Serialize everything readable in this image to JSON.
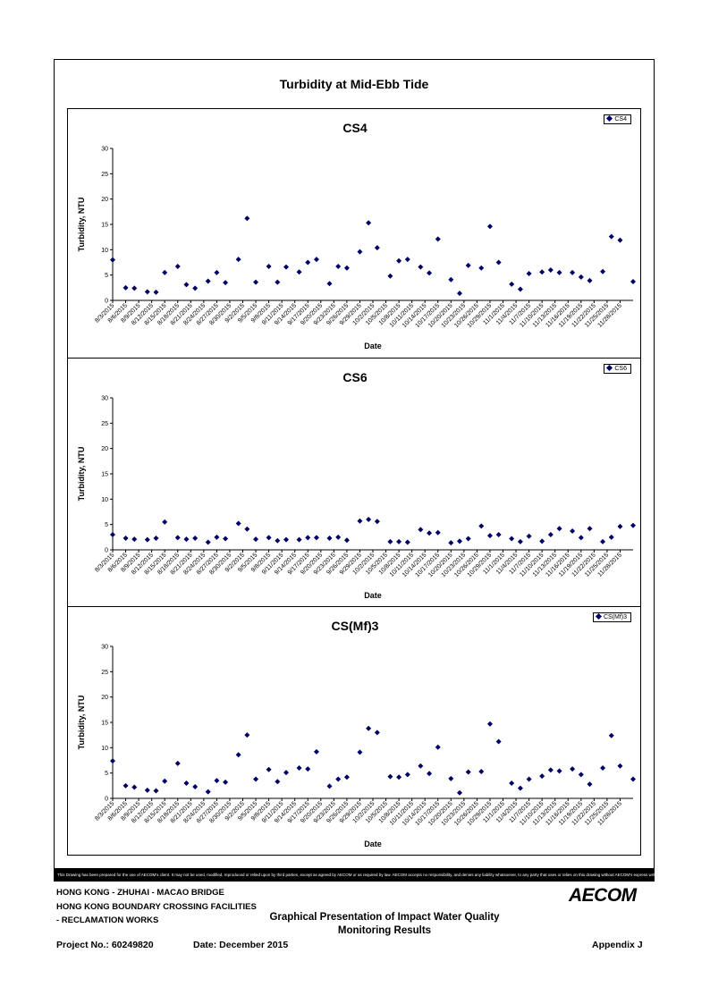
{
  "page": {
    "title": "Turbidity at Mid-Ebb Tide",
    "disclaimer": "This Drawing has been prepared for the use of AECOM's client. It may not be used, modified, reproduced or relied upon by third parties, except as agreed by AECOM or as required by law. AECOM accepts no responsibility, and denies any liability whatsoever, to any party that uses or relies on this drawing without AECOM's express written consent.",
    "footer": {
      "line1": "HONG KONG - ZHUHAI - MACAO BRIDGE",
      "line2": "HONG KONG BOUNDARY CROSSING FACILITIES",
      "line3": "- RECLAMATION WORKS",
      "heading1": "Graphical Presentation of Impact Water Quality",
      "heading2": "Monitoring Results",
      "project": "Project No.: 60249820",
      "date": "Date: December 2015",
      "appendix": "Appendix J",
      "logo": "AECOM"
    }
  },
  "marker_color": "#000066",
  "chart_data": [
    {
      "type": "scatter",
      "title": "CS4",
      "xlabel": "Date",
      "ylabel": "Turbidity, NTU",
      "ylim": [
        0,
        30
      ],
      "yticks": [
        0,
        5,
        10,
        15,
        20,
        25,
        30
      ],
      "legend": "top-right",
      "grid": false,
      "xticks": [
        "8/3/2015",
        "8/6/2015",
        "8/9/2015",
        "8/12/2015",
        "8/15/2015",
        "8/18/2015",
        "8/21/2015",
        "8/24/2015",
        "8/27/2015",
        "8/30/2015",
        "9/2/2015",
        "9/5/2015",
        "9/8/2015",
        "9/11/2015",
        "9/14/2015",
        "9/17/2015",
        "9/20/2015",
        "9/23/2015",
        "9/26/2015",
        "9/29/2015",
        "10/2/2015",
        "10/5/2015",
        "10/8/2015",
        "10/11/2015",
        "10/14/2015",
        "10/17/2015",
        "10/20/2015",
        "10/23/2015",
        "10/26/2015",
        "10/29/2015",
        "11/1/2015",
        "11/4/2015",
        "11/7/2015",
        "11/10/2015",
        "11/13/2015",
        "11/16/2015",
        "11/19/2015",
        "11/22/2015",
        "11/25/2015",
        "11/28/2015"
      ],
      "series": [
        {
          "name": "CS4",
          "x": [
            "8/3/2015",
            "8/6/2015",
            "8/8/2015",
            "8/11/2015",
            "8/13/2015",
            "8/15/2015",
            "8/18/2015",
            "8/20/2015",
            "8/22/2015",
            "8/25/2015",
            "8/27/2015",
            "8/29/2015",
            "9/1/2015",
            "9/3/2015",
            "9/5/2015",
            "9/8/2015",
            "9/10/2015",
            "9/12/2015",
            "9/15/2015",
            "9/17/2015",
            "9/19/2015",
            "9/22/2015",
            "9/24/2015",
            "9/26/2015",
            "9/29/2015",
            "10/1/2015",
            "10/3/2015",
            "10/6/2015",
            "10/8/2015",
            "10/10/2015",
            "10/13/2015",
            "10/15/2015",
            "10/17/2015",
            "10/20/2015",
            "10/22/2015",
            "10/24/2015",
            "10/27/2015",
            "10/29/2015",
            "10/31/2015",
            "11/3/2015",
            "11/5/2015",
            "11/7/2015",
            "11/10/2015",
            "11/12/2015",
            "11/14/2015",
            "11/17/2015",
            "11/19/2015",
            "11/21/2015",
            "11/24/2015",
            "11/26/2015",
            "11/28/2015",
            "12/1/2015"
          ],
          "values": [
            8.0,
            2.5,
            2.4,
            1.7,
            1.6,
            5.5,
            6.7,
            3.1,
            2.4,
            3.8,
            5.5,
            3.5,
            8.1,
            16.2,
            3.6,
            6.7,
            3.6,
            6.6,
            5.6,
            7.5,
            8.1,
            3.3,
            6.7,
            6.4,
            9.6,
            15.3,
            10.4,
            4.8,
            7.8,
            8.1,
            6.6,
            5.4,
            12.1,
            4.1,
            1.4,
            6.9,
            6.4,
            14.6,
            7.5,
            3.2,
            2.2,
            5.3,
            5.6,
            6.0,
            5.5,
            5.5,
            4.6,
            3.9,
            5.7,
            12.6,
            11.9,
            3.7
          ]
        }
      ]
    },
    {
      "type": "scatter",
      "title": "CS6",
      "xlabel": "Date",
      "ylabel": "Turbidity, NTU",
      "ylim": [
        0,
        30
      ],
      "yticks": [
        0,
        5,
        10,
        15,
        20,
        25,
        30
      ],
      "legend": "top-right",
      "grid": false,
      "xticks": [
        "8/3/2015",
        "8/6/2015",
        "8/9/2015",
        "8/12/2015",
        "8/15/2015",
        "8/18/2015",
        "8/21/2015",
        "8/24/2015",
        "8/27/2015",
        "8/30/2015",
        "9/2/2015",
        "9/5/2015",
        "9/8/2015",
        "9/11/2015",
        "9/14/2015",
        "9/17/2015",
        "9/20/2015",
        "9/23/2015",
        "9/26/2015",
        "9/29/2015",
        "10/2/2015",
        "10/5/2015",
        "10/8/2015",
        "10/11/2015",
        "10/14/2015",
        "10/17/2015",
        "10/20/2015",
        "10/23/2015",
        "10/26/2015",
        "10/29/2015",
        "11/1/2015",
        "11/4/2015",
        "11/7/2015",
        "11/10/2015",
        "11/13/2015",
        "11/16/2015",
        "11/19/2015",
        "11/22/2015",
        "11/25/2015",
        "11/28/2015"
      ],
      "series": [
        {
          "name": "CS6",
          "x": [
            "8/3/2015",
            "8/6/2015",
            "8/8/2015",
            "8/11/2015",
            "8/13/2015",
            "8/15/2015",
            "8/18/2015",
            "8/20/2015",
            "8/22/2015",
            "8/25/2015",
            "8/27/2015",
            "8/29/2015",
            "9/1/2015",
            "9/3/2015",
            "9/5/2015",
            "9/8/2015",
            "9/10/2015",
            "9/12/2015",
            "9/15/2015",
            "9/17/2015",
            "9/19/2015",
            "9/22/2015",
            "9/24/2015",
            "9/26/2015",
            "9/29/2015",
            "10/1/2015",
            "10/3/2015",
            "10/6/2015",
            "10/8/2015",
            "10/10/2015",
            "10/13/2015",
            "10/15/2015",
            "10/17/2015",
            "10/20/2015",
            "10/22/2015",
            "10/24/2015",
            "10/27/2015",
            "10/29/2015",
            "10/31/2015",
            "11/3/2015",
            "11/5/2015",
            "11/7/2015",
            "11/10/2015",
            "11/12/2015",
            "11/14/2015",
            "11/17/2015",
            "11/19/2015",
            "11/21/2015",
            "11/24/2015",
            "11/26/2015",
            "11/28/2015",
            "12/1/2015"
          ],
          "values": [
            3.0,
            2.3,
            2.1,
            2.0,
            2.3,
            5.5,
            2.4,
            2.1,
            2.3,
            1.5,
            2.5,
            2.2,
            5.2,
            4.1,
            2.1,
            2.4,
            1.8,
            2.0,
            2.0,
            2.4,
            2.4,
            2.3,
            2.5,
            1.9,
            5.7,
            6.0,
            5.6,
            1.6,
            1.6,
            1.5,
            4.0,
            3.3,
            3.4,
            1.4,
            1.7,
            2.2,
            4.7,
            2.8,
            3.0,
            2.2,
            1.6,
            2.7,
            1.7,
            3.0,
            4.2,
            3.7,
            2.4,
            4.2,
            1.6,
            2.5,
            4.6,
            4.8
          ]
        }
      ]
    },
    {
      "type": "scatter",
      "title": "CS(Mf)3",
      "xlabel": "Date",
      "ylabel": "Turbidity, NTU",
      "ylim": [
        0,
        30
      ],
      "yticks": [
        0,
        5,
        10,
        15,
        20,
        25,
        30
      ],
      "legend": "top-right",
      "grid": false,
      "xticks": [
        "8/3/2015",
        "8/6/2015",
        "8/9/2015",
        "8/12/2015",
        "8/15/2015",
        "8/18/2015",
        "8/21/2015",
        "8/24/2015",
        "8/27/2015",
        "8/30/2015",
        "9/2/2015",
        "9/5/2015",
        "9/8/2015",
        "9/11/2015",
        "9/14/2015",
        "9/17/2015",
        "9/20/2015",
        "9/23/2015",
        "9/26/2015",
        "9/29/2015",
        "10/2/2015",
        "10/5/2015",
        "10/8/2015",
        "10/11/2015",
        "10/14/2015",
        "10/17/2015",
        "10/20/2015",
        "10/23/2015",
        "10/26/2015",
        "10/29/2015",
        "11/1/2015",
        "11/4/2015",
        "11/7/2015",
        "11/10/2015",
        "11/13/2015",
        "11/16/2015",
        "11/19/2015",
        "11/22/2015",
        "11/25/2015",
        "11/28/2015"
      ],
      "series": [
        {
          "name": "CS(Mf)3",
          "x": [
            "8/3/2015",
            "8/6/2015",
            "8/8/2015",
            "8/11/2015",
            "8/13/2015",
            "8/15/2015",
            "8/18/2015",
            "8/20/2015",
            "8/22/2015",
            "8/25/2015",
            "8/27/2015",
            "8/29/2015",
            "9/1/2015",
            "9/3/2015",
            "9/5/2015",
            "9/8/2015",
            "9/10/2015",
            "9/12/2015",
            "9/15/2015",
            "9/17/2015",
            "9/19/2015",
            "9/22/2015",
            "9/24/2015",
            "9/26/2015",
            "9/29/2015",
            "10/1/2015",
            "10/3/2015",
            "10/6/2015",
            "10/8/2015",
            "10/10/2015",
            "10/13/2015",
            "10/15/2015",
            "10/17/2015",
            "10/20/2015",
            "10/22/2015",
            "10/24/2015",
            "10/27/2015",
            "10/29/2015",
            "10/31/2015",
            "11/3/2015",
            "11/5/2015",
            "11/7/2015",
            "11/10/2015",
            "11/12/2015",
            "11/14/2015",
            "11/17/2015",
            "11/19/2015",
            "11/21/2015",
            "11/24/2015",
            "11/26/2015",
            "11/28/2015",
            "12/1/2015"
          ],
          "values": [
            7.4,
            2.5,
            2.2,
            1.6,
            1.5,
            3.4,
            6.9,
            3.0,
            2.3,
            1.3,
            3.5,
            3.2,
            8.6,
            12.5,
            3.8,
            5.7,
            3.3,
            5.1,
            6.0,
            5.8,
            9.2,
            2.4,
            3.8,
            4.2,
            9.1,
            13.8,
            13.0,
            4.3,
            4.2,
            4.7,
            6.4,
            4.9,
            10.1,
            3.9,
            1.1,
            5.2,
            5.3,
            14.7,
            11.2,
            3.0,
            2.0,
            3.8,
            4.4,
            5.6,
            5.4,
            5.8,
            4.7,
            2.8,
            6.0,
            12.4,
            6.4,
            3.8
          ]
        }
      ]
    }
  ]
}
